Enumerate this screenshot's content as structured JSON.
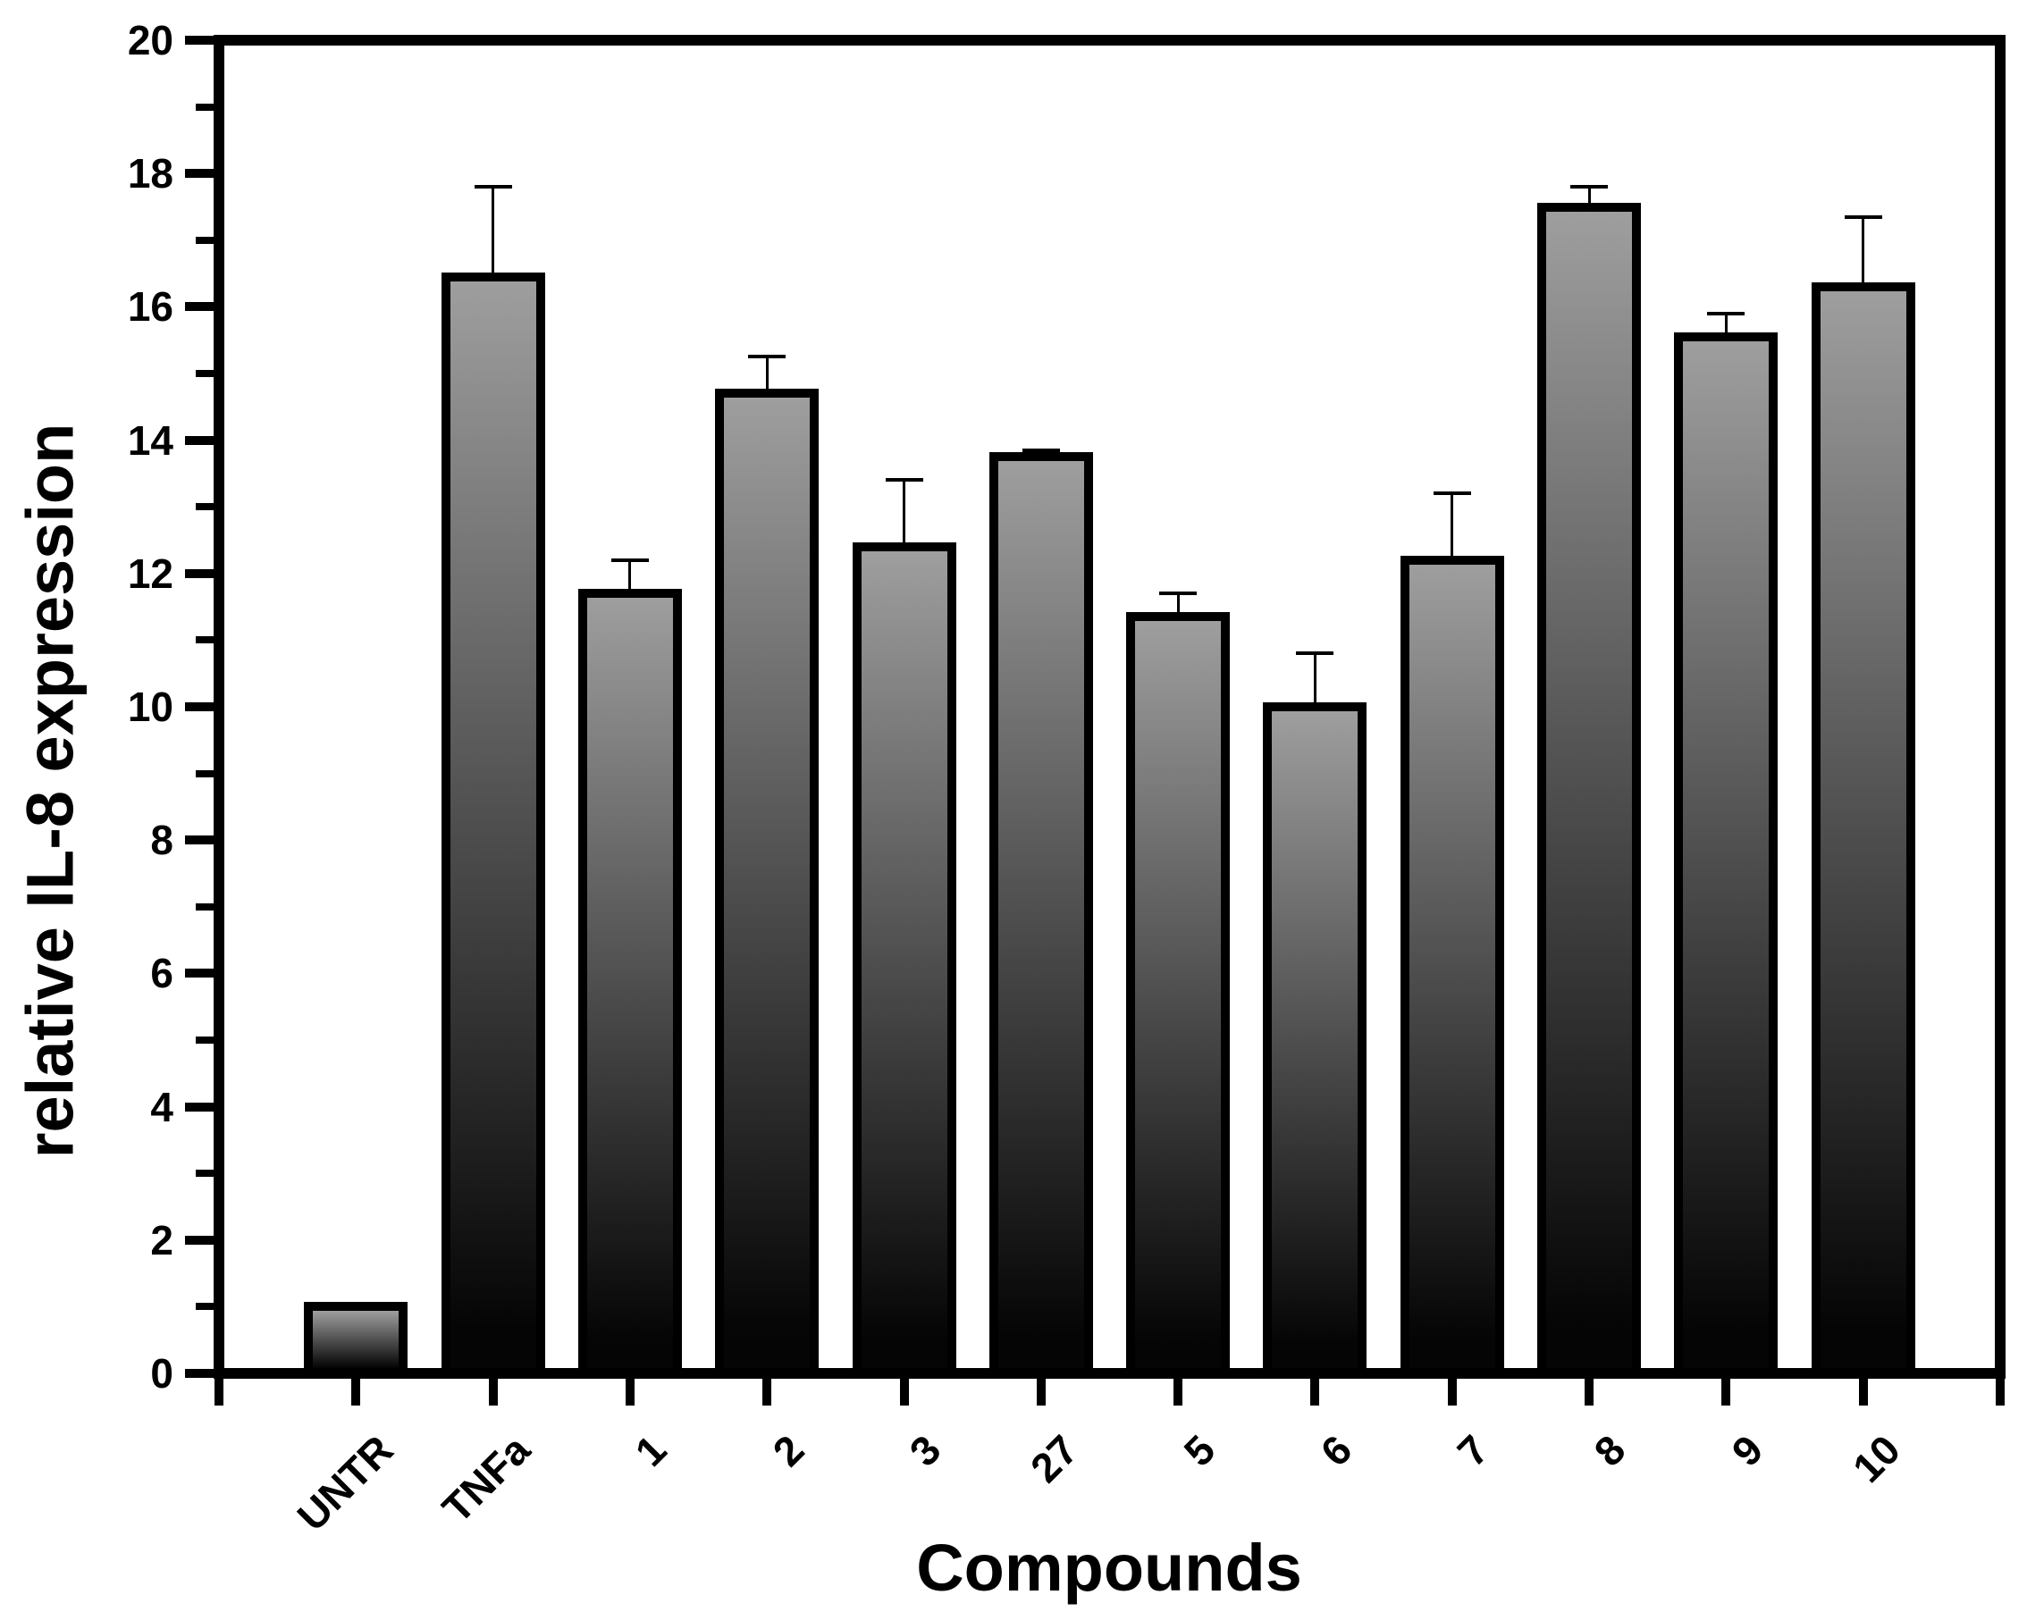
{
  "page": {
    "background_color": "#ffffff",
    "text_color": "#000000"
  },
  "chart_data": {
    "type": "bar",
    "title": "",
    "xlabel": "Compounds",
    "ylabel": "relative IL-8 expression",
    "categories": [
      "UNTR",
      "TNFa",
      "1",
      "2",
      "3",
      "27",
      "5",
      "6",
      "7",
      "8",
      "9",
      "10"
    ],
    "values": [
      1.0,
      16.45,
      11.7,
      14.7,
      12.4,
      13.75,
      11.35,
      10.0,
      12.2,
      17.5,
      15.55,
      16.3
    ],
    "errors_plus": [
      0,
      1.35,
      0.5,
      0.55,
      1.0,
      0.1,
      0.35,
      0.8,
      1.0,
      0.3,
      0.35,
      1.05
    ],
    "ylim": [
      0,
      20
    ],
    "y_major_step": 2,
    "y_minor_step": 1,
    "y_tick_labels": [
      "0",
      "2",
      "4",
      "6",
      "8",
      "10",
      "12",
      "14",
      "16",
      "18",
      "20"
    ],
    "grid": false,
    "legend": null,
    "error_bars": "upper_only",
    "bar_style": {
      "fill_top": "#9e9e9e",
      "fill_bottom": "#050505",
      "border_color": "#000000"
    },
    "frame_color": "#000000",
    "error_bar_color": "#000000"
  }
}
